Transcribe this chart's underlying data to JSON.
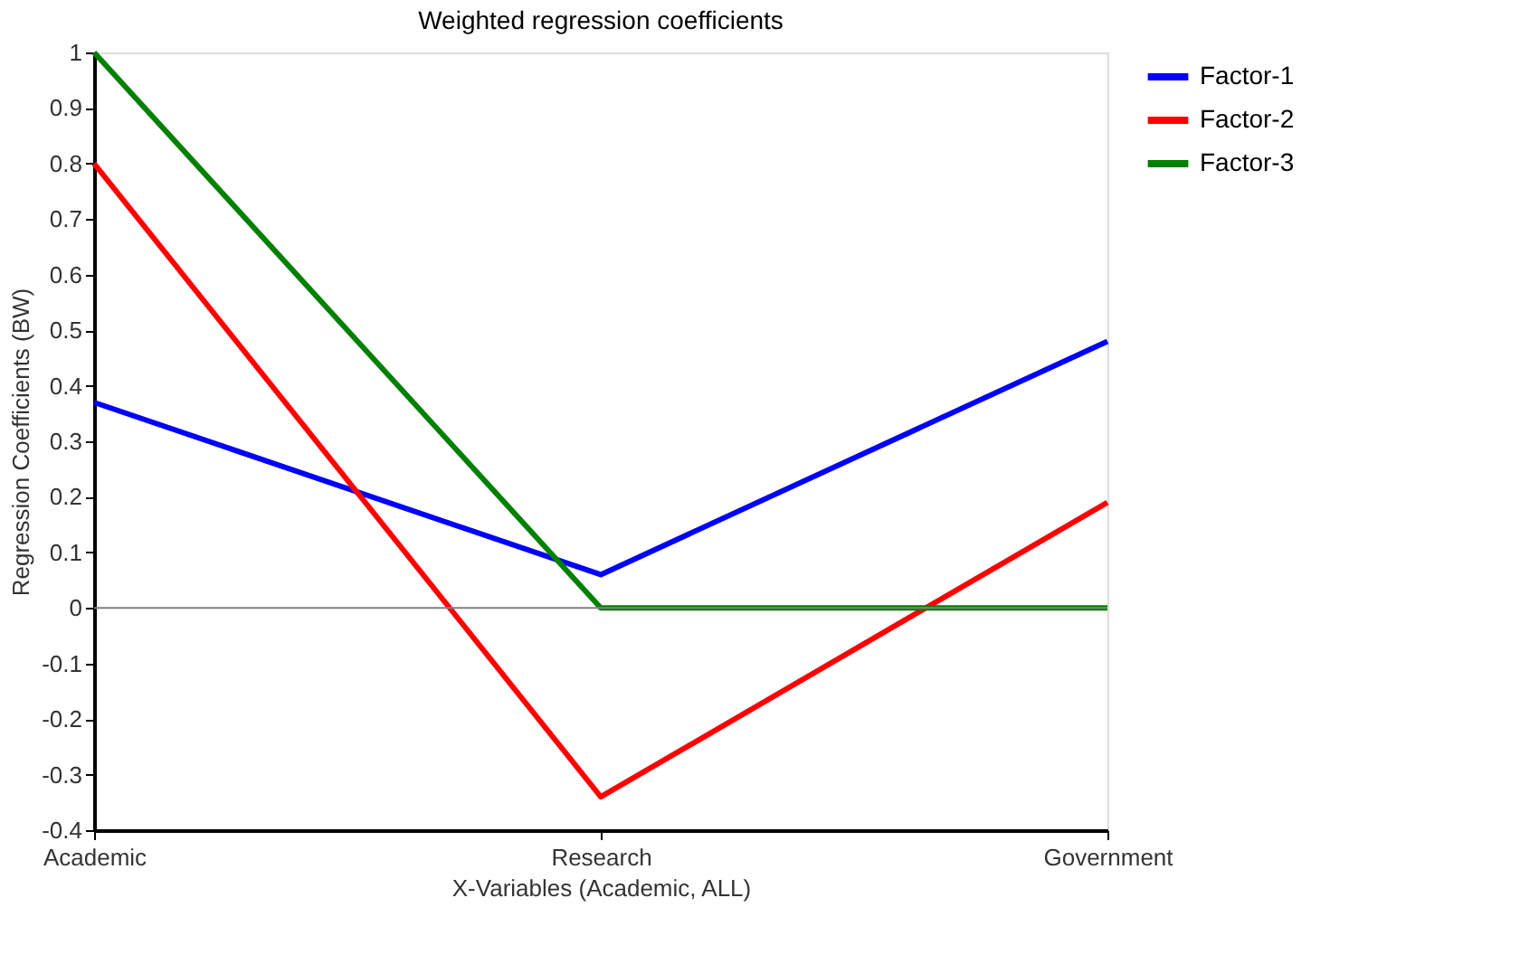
{
  "chart_data": {
    "type": "line",
    "title": "Weighted regression coefficients",
    "xlabel": "X-Variables (Academic, ALL)",
    "ylabel": "Regression Coefficients (BW)",
    "categories": [
      "Academic",
      "Research",
      "Government"
    ],
    "series": [
      {
        "name": "Factor-1",
        "color": "#0000ff",
        "values": [
          0.37,
          0.06,
          0.48
        ]
      },
      {
        "name": "Factor-2",
        "color": "#ff0000",
        "values": [
          0.8,
          -0.34,
          0.19
        ]
      },
      {
        "name": "Factor-3",
        "color": "#008000",
        "values": [
          1,
          0,
          0
        ]
      }
    ],
    "ylim": [
      -0.4,
      1
    ],
    "yticks": [
      -0.4,
      -0.3,
      -0.2,
      -0.1,
      0,
      0.1,
      0.2,
      0.3,
      0.4,
      0.5,
      0.6,
      0.7,
      0.8,
      0.9,
      1
    ],
    "ref_lines": [
      {
        "axis": "y",
        "value": 0,
        "color": "#808080"
      }
    ],
    "grid": false,
    "legend": "right",
    "marker": "none",
    "line_style": "solid"
  }
}
